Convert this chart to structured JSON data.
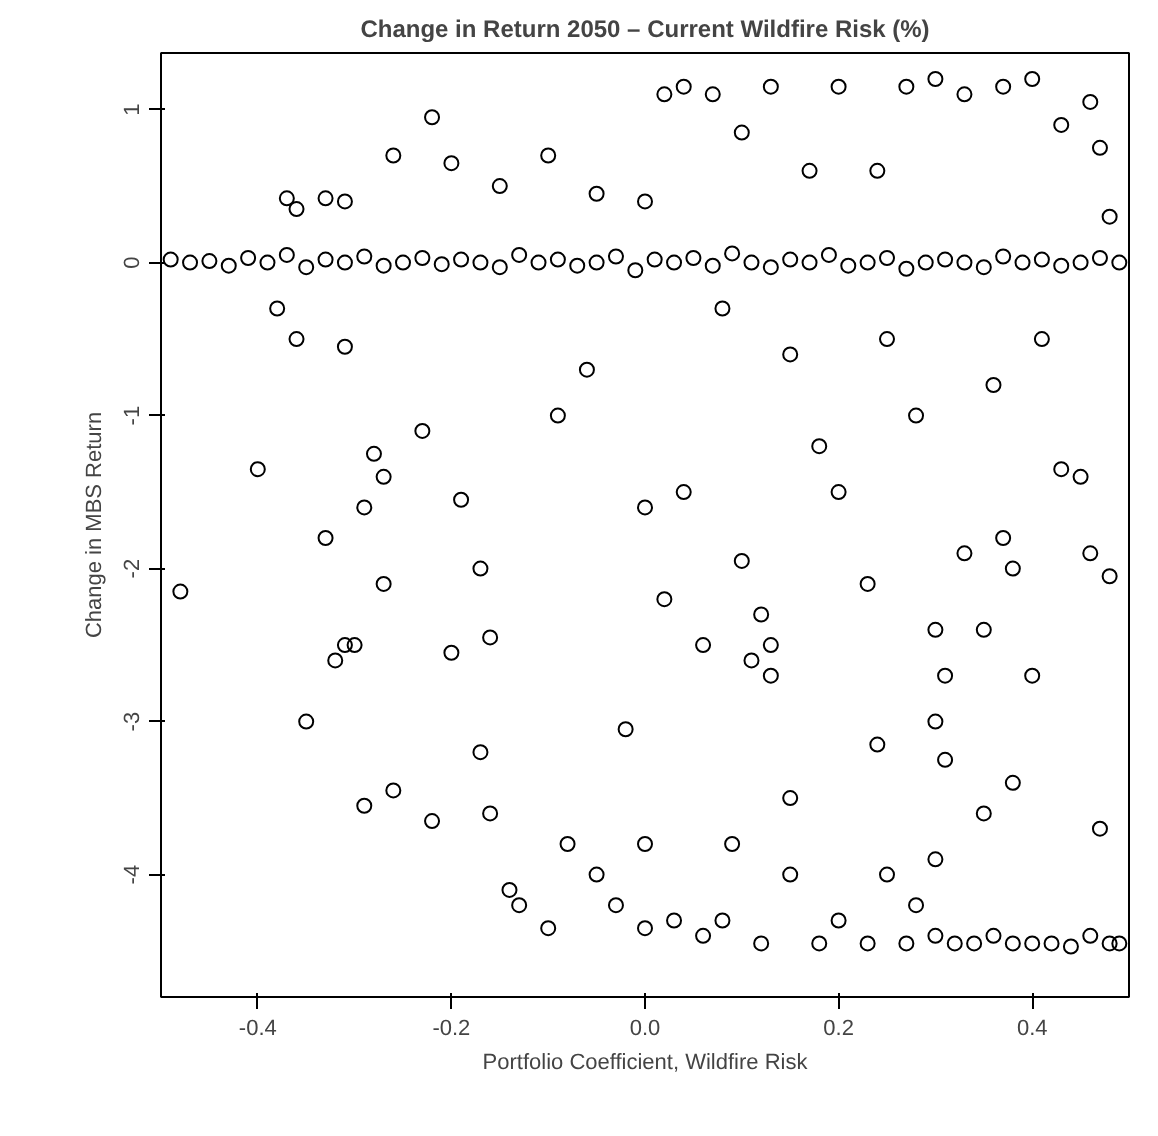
{
  "chart_data": {
    "type": "scatter",
    "title": "Change in Return 2050 – Current Wildfire Risk (%)",
    "xlabel": "Portfolio Coefficient, Wildfire Risk",
    "ylabel": "Change in MBS Return",
    "xlim": [
      -0.5,
      0.5
    ],
    "ylim": [
      -4.8,
      1.37
    ],
    "xticks": [
      -0.4,
      -0.2,
      {
        "value": 0,
        "label": "0.0"
      },
      0.2,
      0.4
    ],
    "yticks": [
      -4,
      -3,
      -2,
      -1,
      0,
      1
    ],
    "grid": false,
    "marker": "circle",
    "series": [
      {
        "color": "#000000",
        "x": [
          -0.49,
          -0.47,
          -0.45,
          -0.43,
          -0.41,
          -0.39,
          -0.37,
          -0.35,
          -0.33,
          -0.31,
          -0.29,
          -0.27,
          -0.25,
          -0.23,
          -0.21,
          -0.19,
          -0.17,
          -0.15,
          -0.13,
          -0.11,
          -0.09,
          -0.07,
          -0.05,
          -0.03,
          -0.01,
          0.01,
          0.03,
          0.05,
          0.07,
          0.09,
          0.11,
          0.13,
          0.15,
          0.17,
          0.19,
          0.21,
          0.23,
          0.25,
          0.27,
          0.29,
          0.31,
          0.33,
          0.35,
          0.37,
          0.39,
          0.41,
          0.43,
          0.45,
          0.47,
          0.49,
          -0.37,
          -0.36,
          -0.33,
          -0.31,
          -0.26,
          -0.22,
          -0.2,
          -0.15,
          -0.1,
          -0.05,
          0.0,
          0.02,
          0.04,
          0.07,
          0.1,
          0.13,
          0.17,
          0.2,
          0.24,
          0.27,
          0.3,
          0.33,
          0.37,
          0.4,
          0.43,
          0.46,
          0.47,
          0.48,
          -0.38,
          -0.36,
          -0.31,
          -0.4,
          -0.33,
          -0.29,
          -0.28,
          -0.27,
          -0.27,
          -0.31,
          -0.32,
          -0.3,
          -0.35,
          -0.23,
          -0.19,
          -0.17,
          -0.16,
          -0.2,
          -0.48,
          -0.09,
          -0.06,
          0.0,
          0.02,
          0.04,
          0.06,
          0.1,
          0.11,
          0.12,
          0.13,
          0.13,
          0.18,
          0.2,
          0.23,
          0.28,
          0.3,
          0.31,
          0.33,
          0.35,
          0.37,
          0.38,
          0.4,
          0.43,
          0.45,
          0.46,
          0.48,
          0.08,
          0.15,
          0.25,
          0.36,
          0.41,
          -0.02,
          0.3,
          0.24,
          0.31,
          0.35,
          0.38,
          0.15,
          0.09,
          0.0,
          -0.29,
          -0.26,
          -0.22,
          -0.17,
          -0.16,
          -0.14,
          -0.13,
          -0.1,
          -0.08,
          -0.05,
          -0.03,
          0.0,
          0.03,
          0.06,
          0.08,
          0.12,
          0.15,
          0.18,
          0.2,
          0.23,
          0.27,
          0.3,
          0.32,
          0.34,
          0.36,
          0.38,
          0.4,
          0.42,
          0.44,
          0.46,
          0.48,
          0.49,
          0.28,
          0.25,
          0.3,
          0.47
        ],
        "values": [
          0.02,
          0.0,
          0.01,
          -0.02,
          0.03,
          0.0,
          0.05,
          -0.03,
          0.02,
          0.0,
          0.04,
          -0.02,
          0.0,
          0.03,
          -0.01,
          0.02,
          0.0,
          -0.03,
          0.05,
          0.0,
          0.02,
          -0.02,
          0.0,
          0.04,
          -0.05,
          0.02,
          0.0,
          0.03,
          -0.02,
          0.06,
          0.0,
          -0.03,
          0.02,
          0.0,
          0.05,
          -0.02,
          0.0,
          0.03,
          -0.04,
          0.0,
          0.02,
          0.0,
          -0.03,
          0.04,
          0.0,
          0.02,
          -0.02,
          0.0,
          0.03,
          0.0,
          0.42,
          0.35,
          0.42,
          0.4,
          0.7,
          0.95,
          0.65,
          0.5,
          0.7,
          0.45,
          0.4,
          1.1,
          1.15,
          1.1,
          0.85,
          1.15,
          0.6,
          1.15,
          0.6,
          1.15,
          1.2,
          1.1,
          1.15,
          1.2,
          0.9,
          1.05,
          0.75,
          0.3,
          -0.3,
          -0.5,
          -0.55,
          -1.35,
          -1.8,
          -1.6,
          -1.25,
          -1.4,
          -2.1,
          -2.5,
          -2.6,
          -2.5,
          -3.0,
          -1.1,
          -1.55,
          -2.0,
          -2.45,
          -2.55,
          -2.15,
          -1.0,
          -0.7,
          -1.6,
          -2.2,
          -1.5,
          -2.5,
          -1.95,
          -2.6,
          -2.3,
          -2.5,
          -2.7,
          -1.2,
          -1.5,
          -2.1,
          -1.0,
          -2.4,
          -2.7,
          -1.9,
          -2.4,
          -1.8,
          -2.0,
          -2.7,
          -1.35,
          -1.4,
          -1.9,
          -2.05,
          -0.3,
          -0.6,
          -0.5,
          -0.8,
          -0.5,
          -3.05,
          -3.0,
          -3.15,
          -3.25,
          -3.6,
          -3.4,
          -3.5,
          -3.8,
          -3.8,
          -3.55,
          -3.45,
          -3.65,
          -3.2,
          -3.6,
          -4.1,
          -4.2,
          -4.35,
          -3.8,
          -4.0,
          -4.2,
          -4.35,
          -4.3,
          -4.4,
          -4.3,
          -4.45,
          -4.0,
          -4.45,
          -4.3,
          -4.45,
          -4.45,
          -4.4,
          -4.45,
          -4.45,
          -4.4,
          -4.45,
          -4.45,
          -4.45,
          -4.47,
          -4.4,
          -4.45,
          -4.45,
          -4.2,
          -4.0,
          -3.9,
          -3.7
        ]
      }
    ]
  }
}
